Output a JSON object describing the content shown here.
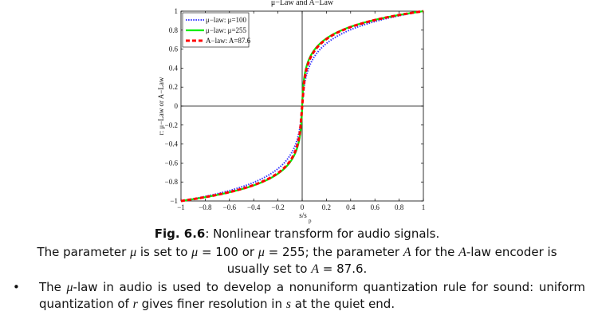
{
  "chart_data": {
    "type": "line",
    "title": "μ−Law and A−Law",
    "xlabel": "s/s",
    "xlabel_sub": "p",
    "ylabel": "r: μ−Law or A−Law",
    "xlim": [
      -1,
      1
    ],
    "ylim": [
      -1,
      1
    ],
    "xticks": [
      "−1",
      "−0.8",
      "−0.6",
      "−0.4",
      "−0.2",
      "0",
      "0.2",
      "0.4",
      "0.6",
      "0.8",
      "1"
    ],
    "yticks": [
      "−1",
      "−0.8",
      "−0.6",
      "−0.4",
      "−0.2",
      "0",
      "0.2",
      "0.4",
      "0.6",
      "0.8",
      "1"
    ],
    "legend_position": "top-left",
    "grid": false,
    "series": [
      {
        "name": "μ−law: μ=100",
        "color": "#3333ff",
        "style": "dotted",
        "law": "mu",
        "param": 100
      },
      {
        "name": "μ−law: μ=255",
        "color": "#00ee00",
        "style": "solid",
        "law": "mu",
        "param": 255
      },
      {
        "name": "A−law: A=87.6",
        "color": "#ff0000",
        "style": "dashed",
        "law": "A",
        "param": 87.6
      }
    ]
  },
  "caption": {
    "fig_label": "Fig. 6.6",
    "fig_text": ": Nonlinear transform for audio signals."
  },
  "param_text": {
    "p1": "The parameter ",
    "mu": "μ",
    "p2": " is set to ",
    "p3": " = 100 or ",
    "p4": " = 255; the parameter ",
    "A": "A",
    "p5": " for the ",
    "p6": "-law encoder is usually set to ",
    "p7": " = 87.6."
  },
  "bullet": {
    "dot": "•",
    "t1": "The ",
    "mu": "μ",
    "t2": "-law in audio is used to develop a nonuniform quantization rule for sound: uniform quantization of ",
    "r": "r",
    "t3": " gives finer resolution in ",
    "s": "s",
    "t4": " at the quiet end."
  }
}
